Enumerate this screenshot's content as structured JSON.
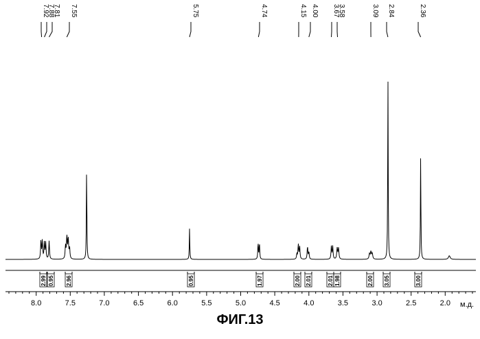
{
  "chart_data": {
    "type": "line",
    "title": "",
    "xlabel": "м.д.",
    "ylabel": "",
    "xlim": [
      8.45,
      1.55
    ],
    "x_reversed": true,
    "grid": false,
    "x_ticks": [
      8.0,
      7.5,
      7.0,
      6.5,
      6.0,
      5.5,
      5.0,
      4.5,
      4.0,
      3.5,
      3.0,
      2.5,
      2.0
    ],
    "x_tick_labels": [
      "8.0",
      "7.5",
      "7.0",
      "6.5",
      "6.0",
      "5.5",
      "5.0",
      "4.5",
      "4.0",
      "3.5",
      "3.0",
      "2.5",
      "2.0"
    ],
    "peak_labels": [
      "7.92",
      "7.88",
      "7.81",
      "7.55",
      "5.75",
      "4.74",
      "4.15",
      "4.00",
      "3.67",
      "3.58",
      "3.09",
      "2.84",
      "2.36"
    ],
    "peak_label_positions": [
      7.92,
      7.88,
      7.81,
      7.55,
      5.75,
      4.74,
      4.15,
      4.0,
      3.67,
      3.58,
      3.09,
      2.84,
      2.36
    ],
    "peaks": [
      {
        "ppm": 7.93,
        "height": 0.1,
        "width": 0.006
      },
      {
        "ppm": 7.91,
        "height": 0.1,
        "width": 0.006
      },
      {
        "ppm": 7.88,
        "height": 0.09,
        "width": 0.006
      },
      {
        "ppm": 7.86,
        "height": 0.09,
        "width": 0.006
      },
      {
        "ppm": 7.81,
        "height": 0.1,
        "width": 0.006
      },
      {
        "ppm": 7.57,
        "height": 0.07,
        "width": 0.006
      },
      {
        "ppm": 7.55,
        "height": 0.12,
        "width": 0.007
      },
      {
        "ppm": 7.53,
        "height": 0.11,
        "width": 0.007
      },
      {
        "ppm": 7.51,
        "height": 0.06,
        "width": 0.006
      },
      {
        "ppm": 7.26,
        "height": 0.52,
        "width": 0.004
      },
      {
        "ppm": 5.75,
        "height": 0.17,
        "width": 0.004
      },
      {
        "ppm": 4.745,
        "height": 0.09,
        "width": 0.005
      },
      {
        "ppm": 4.725,
        "height": 0.09,
        "width": 0.005
      },
      {
        "ppm": 4.175,
        "height": 0.03,
        "width": 0.006
      },
      {
        "ppm": 4.155,
        "height": 0.08,
        "width": 0.006
      },
      {
        "ppm": 4.135,
        "height": 0.07,
        "width": 0.006
      },
      {
        "ppm": 4.02,
        "height": 0.07,
        "width": 0.006
      },
      {
        "ppm": 4.0,
        "height": 0.04,
        "width": 0.006
      },
      {
        "ppm": 3.67,
        "height": 0.07,
        "width": 0.006
      },
      {
        "ppm": 3.65,
        "height": 0.07,
        "width": 0.006
      },
      {
        "ppm": 3.585,
        "height": 0.06,
        "width": 0.007
      },
      {
        "ppm": 3.565,
        "height": 0.06,
        "width": 0.007
      },
      {
        "ppm": 3.11,
        "height": 0.03,
        "width": 0.008
      },
      {
        "ppm": 3.09,
        "height": 0.04,
        "width": 0.008
      },
      {
        "ppm": 3.07,
        "height": 0.03,
        "width": 0.008
      },
      {
        "ppm": 2.84,
        "height": 1.0,
        "width": 0.004
      },
      {
        "ppm": 2.36,
        "height": 0.58,
        "width": 0.004
      },
      {
        "ppm": 1.94,
        "height": 0.02,
        "width": 0.015
      }
    ],
    "integrals": [
      {
        "ppm": 7.92,
        "label": "2.99"
      },
      {
        "ppm": 7.83,
        "label": "0.95"
      },
      {
        "ppm": 7.56,
        "label": "2.96"
      },
      {
        "ppm": 5.75,
        "label": "0.95"
      },
      {
        "ppm": 4.72,
        "label": "1.97"
      },
      {
        "ppm": 4.14,
        "label": "2.00"
      },
      {
        "ppm": 4.0,
        "label": "2.01"
      },
      {
        "ppm": 3.66,
        "label": "2.01"
      },
      {
        "ppm": 3.58,
        "label": "1.98"
      },
      {
        "ppm": 3.08,
        "label": "2.00"
      },
      {
        "ppm": 2.84,
        "label": "3.05"
      },
      {
        "ppm": 2.36,
        "label": "3.00"
      }
    ]
  },
  "figure_label": "ФИГ.13",
  "colors": {
    "line": "#000000",
    "background": "#ffffff"
  }
}
